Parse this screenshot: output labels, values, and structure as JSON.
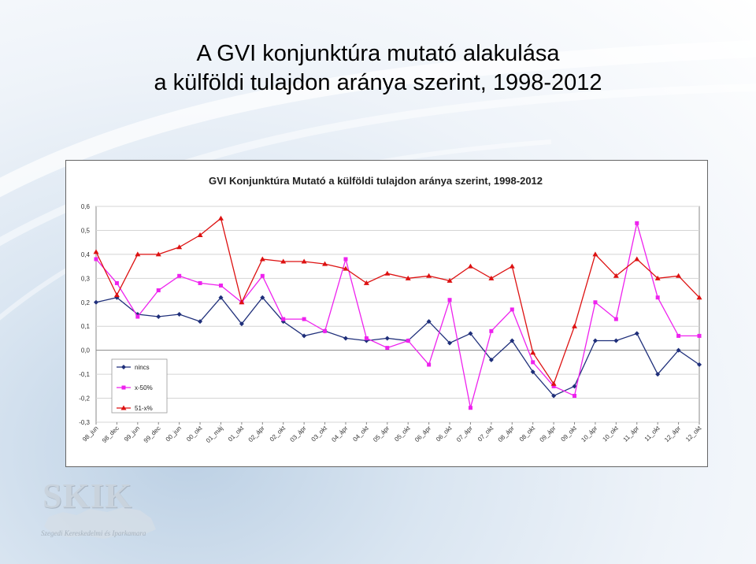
{
  "slide": {
    "title_line1": "A GVI konjunktúra mutató alakulása",
    "title_line2": "a külföldi tulajdon aránya szerint, 1998-2012"
  },
  "logo": {
    "main": "SKIK",
    "sub": "Szegedi Kereskedelmi és Iparkamara"
  },
  "chart_data": {
    "type": "line",
    "title": "GVI Konjunktúra Mutató a külföldi tulajdon aránya szerint, 1998-2012",
    "ylim": [
      -0.3,
      0.6
    ],
    "yticks": [
      "0,6",
      "0,5",
      "0,4",
      "0,3",
      "0,2",
      "0,1",
      "0,0",
      "-0,1",
      "-0,2",
      "-0,3"
    ],
    "ytick_values": [
      0.6,
      0.5,
      0.4,
      0.3,
      0.2,
      0.1,
      0.0,
      -0.1,
      -0.2,
      -0.3
    ],
    "grid": true,
    "legend_position": "bottom-left",
    "x": [
      "98_jun",
      "98_dec",
      "99_jun",
      "99_dec",
      "00_jun",
      "00_okt",
      "01_máj",
      "01_okt",
      "02_ápr",
      "02_okt",
      "03_ápr",
      "03_okt",
      "04_ápr",
      "04_okt",
      "05_ápr",
      "05_okt",
      "06_ápr",
      "06_okt",
      "07_ápr",
      "07_okt",
      "08_ápr",
      "08_okt",
      "09_ápr",
      "09_okt",
      "10_ápr",
      "10_okt",
      "11_ápr",
      "11_okt",
      "12_ápr",
      "12_okt"
    ],
    "series": [
      {
        "name": "nincs",
        "color": "#1f2f7a",
        "marker": "diamond",
        "values": [
          0.2,
          0.22,
          0.15,
          0.14,
          0.15,
          0.12,
          0.22,
          0.11,
          0.22,
          0.12,
          0.06,
          0.08,
          0.05,
          0.04,
          0.05,
          0.04,
          0.12,
          0.03,
          0.07,
          -0.04,
          0.04,
          -0.09,
          -0.19,
          -0.15,
          0.04,
          0.04,
          0.07,
          -0.1,
          0.0,
          -0.06
        ]
      },
      {
        "name": "x-50%",
        "color": "#ee22ee",
        "marker": "square",
        "values": [
          0.38,
          0.28,
          0.14,
          0.25,
          0.31,
          0.28,
          0.27,
          0.2,
          0.31,
          0.13,
          0.13,
          0.08,
          0.38,
          0.05,
          0.01,
          0.04,
          -0.06,
          0.21,
          -0.24,
          0.08,
          0.17,
          -0.05,
          -0.15,
          -0.19,
          0.2,
          0.13,
          0.53,
          0.22,
          0.06,
          0.06
        ]
      },
      {
        "name": "51-x%",
        "color": "#dd1111",
        "marker": "triangle",
        "values": [
          0.41,
          0.23,
          0.4,
          0.4,
          0.43,
          0.48,
          0.55,
          0.2,
          0.38,
          0.37,
          0.37,
          0.36,
          0.34,
          0.28,
          0.32,
          0.3,
          0.31,
          0.29,
          0.35,
          0.3,
          0.35,
          -0.01,
          -0.14,
          0.1,
          0.4,
          0.31,
          0.38,
          0.3,
          0.31,
          0.22
        ]
      }
    ]
  }
}
